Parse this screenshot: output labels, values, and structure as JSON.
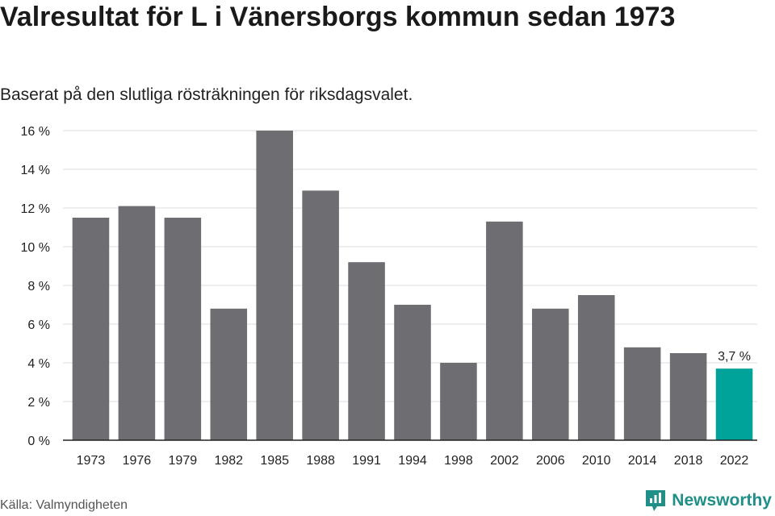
{
  "header": {
    "title": "Valresultat för L i Vänersborgs kommun sedan 1973",
    "subtitle": "Baserat på den slutliga rösträkningen för riksdagsvalet."
  },
  "footer": {
    "source": "Källa: Valmyndigheten",
    "brand": "Newsworthy"
  },
  "colors": {
    "bar": "#6e6d72",
    "highlight": "#00a39a",
    "grid": "#dddddd",
    "axis": "#222222",
    "brand": "#1f8f87"
  },
  "chart_data": {
    "type": "bar",
    "categories": [
      "1973",
      "1976",
      "1979",
      "1982",
      "1985",
      "1988",
      "1991",
      "1994",
      "1998",
      "2002",
      "2006",
      "2010",
      "2014",
      "2018",
      "2022"
    ],
    "values": [
      11.5,
      12.1,
      11.5,
      6.8,
      16.0,
      12.9,
      9.2,
      7.0,
      4.0,
      11.3,
      6.8,
      7.5,
      4.8,
      4.5,
      3.7
    ],
    "highlight_index": 14,
    "data_labels": [
      {
        "index": 14,
        "text": "3,7 %"
      }
    ],
    "ylim": [
      0,
      16
    ],
    "yticks": [
      0,
      2,
      4,
      6,
      8,
      10,
      12,
      14,
      16
    ],
    "ytick_labels": [
      "0 %",
      "2 %",
      "4 %",
      "6 %",
      "8 %",
      "10 %",
      "12 %",
      "14 %",
      "16 %"
    ],
    "grid": true,
    "legend": "none"
  }
}
